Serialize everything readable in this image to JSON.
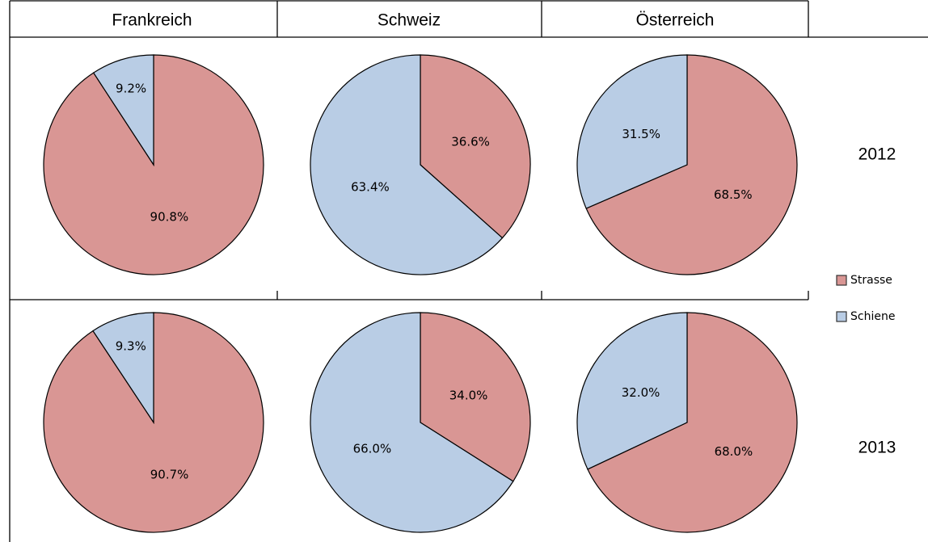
{
  "columns": [
    "Frankreich",
    "Schweiz",
    "Österreich"
  ],
  "rows": [
    "2012",
    "2013"
  ],
  "legend": [
    {
      "name": "Strasse",
      "color": "#d99694"
    },
    {
      "name": "Schiene",
      "color": "#b9cde5"
    }
  ],
  "chart_data": [
    {
      "type": "pie",
      "values": [
        90.8,
        9.2
      ],
      "value_labels": [
        "90.8%",
        "9.2%"
      ]
    },
    {
      "type": "pie",
      "values": [
        36.6,
        63.4
      ],
      "value_labels": [
        "36.6%",
        "63.4%"
      ]
    },
    {
      "type": "pie",
      "values": [
        68.5,
        31.5
      ],
      "value_labels": [
        "68.5%",
        "31.5%"
      ]
    },
    {
      "type": "pie",
      "values": [
        90.7,
        9.3
      ],
      "value_labels": [
        "90.7%",
        "9.3%"
      ]
    },
    {
      "type": "pie",
      "values": [
        34.0,
        66.0
      ],
      "value_labels": [
        "34.0%",
        "66.0%"
      ]
    },
    {
      "type": "pie",
      "values": [
        68.0,
        32.0
      ],
      "value_labels": [
        "68.0%",
        "32.0%"
      ]
    }
  ]
}
